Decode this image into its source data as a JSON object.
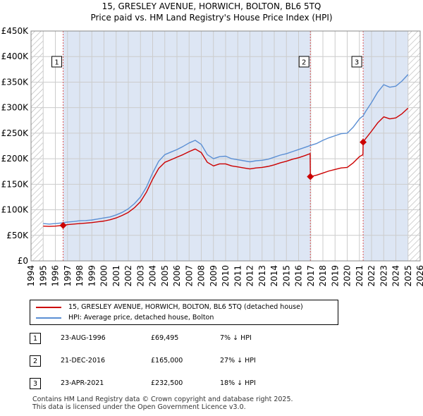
{
  "title_line1": "15, GRESLEY AVENUE, HORWICH, BOLTON, BL6 5TQ",
  "title_line2": "Price paid vs. HM Land Registry's House Price Index (HPI)",
  "legend": {
    "property": "15, GRESLEY AVENUE, HORWICH, BOLTON, BL6 5TQ (detached house)",
    "hpi": "HPI: Average price, detached house, Bolton"
  },
  "colors": {
    "property": "#cc0000",
    "hpi": "#5b8fd4",
    "grid": "#cccccc",
    "plot_bg": "#ffffff",
    "shade": "#dde6f4",
    "hatch": "#b0b0b0",
    "marker_line": "#dd5555"
  },
  "sales": [
    {
      "num": "1",
      "date": "23-AUG-1996",
      "price": "£69,495",
      "hpi": "7% ↓ HPI"
    },
    {
      "num": "2",
      "date": "21-DEC-2016",
      "price": "£165,000",
      "hpi": "27% ↓ HPI"
    },
    {
      "num": "3",
      "date": "23-APR-2021",
      "price": "£232,500",
      "hpi": "18% ↓ HPI"
    }
  ],
  "footer": {
    "line1": "Contains HM Land Registry data © Crown copyright and database right 2025.",
    "line2": "This data is licensed under the Open Government Licence v3.0."
  },
  "chart_data": {
    "type": "line",
    "title": "15, GRESLEY AVENUE, HORWICH, BOLTON, BL6 5TQ — Price paid vs. HM Land Registry's House Price Index (HPI)",
    "xlabel": "",
    "ylabel": "",
    "xlim": [
      1994,
      2026
    ],
    "ylim": [
      0,
      450000
    ],
    "x_ticks": [
      "1994",
      "1995",
      "1996",
      "1997",
      "1998",
      "1999",
      "2000",
      "2001",
      "2002",
      "2003",
      "2004",
      "2005",
      "2006",
      "2007",
      "2008",
      "2009",
      "2010",
      "2011",
      "2012",
      "2013",
      "2014",
      "2015",
      "2016",
      "2017",
      "2018",
      "2019",
      "2020",
      "2021",
      "2022",
      "2023",
      "2024",
      "2025",
      "2026"
    ],
    "y_ticks": [
      {
        "value": 0,
        "label": "£0"
      },
      {
        "value": 50000,
        "label": "£50K"
      },
      {
        "value": 100000,
        "label": "£100K"
      },
      {
        "value": 150000,
        "label": "£150K"
      },
      {
        "value": 200000,
        "label": "£200K"
      },
      {
        "value": 250000,
        "label": "£250K"
      },
      {
        "value": 300000,
        "label": "£300K"
      },
      {
        "value": 350000,
        "label": "£350K"
      },
      {
        "value": 400000,
        "label": "£400K"
      },
      {
        "value": 450000,
        "label": "£450K"
      }
    ],
    "grid": true,
    "shaded_regions": [
      {
        "type": "hatch",
        "from": 1994,
        "to": 1995.0
      },
      {
        "type": "shade",
        "from": 1996.64,
        "to": 2016.97
      },
      {
        "type": "shade",
        "from": 2021.31,
        "to": 2025.0
      },
      {
        "type": "hatch",
        "from": 2025.0,
        "to": 2026
      }
    ],
    "series": [
      {
        "name": "HPI: Average price, detached house, Bolton",
        "x": [
          1995.0,
          1995.5,
          1996.0,
          1996.64,
          1997.0,
          1997.5,
          1998.0,
          1998.5,
          1999.0,
          1999.5,
          2000.0,
          2000.5,
          2001.0,
          2001.5,
          2002.0,
          2002.5,
          2003.0,
          2003.5,
          2004.0,
          2004.5,
          2005.0,
          2005.5,
          2006.0,
          2006.5,
          2007.0,
          2007.5,
          2008.0,
          2008.5,
          2009.0,
          2009.5,
          2010.0,
          2010.5,
          2011.0,
          2011.5,
          2012.0,
          2012.5,
          2013.0,
          2013.5,
          2014.0,
          2014.5,
          2015.0,
          2015.5,
          2016.0,
          2016.5,
          2016.97,
          2017.5,
          2018.0,
          2018.5,
          2019.0,
          2019.5,
          2020.0,
          2020.5,
          2021.0,
          2021.31,
          2021.5,
          2022.0,
          2022.5,
          2023.0,
          2023.5,
          2024.0,
          2024.5,
          2025.0
        ],
        "values": [
          73000,
          72000,
          73000,
          74500,
          76000,
          77000,
          78500,
          79000,
          80000,
          82000,
          84000,
          86000,
          90000,
          95000,
          102000,
          112000,
          125000,
          145000,
          172000,
          195000,
          208000,
          213000,
          218000,
          224000,
          231000,
          236000,
          228000,
          208000,
          200000,
          204000,
          205000,
          200000,
          198000,
          196000,
          194000,
          196000,
          197000,
          199000,
          203000,
          207000,
          210000,
          214000,
          218000,
          222000,
          226000,
          230000,
          236000,
          241000,
          245000,
          249000,
          250000,
          262000,
          278000,
          284000,
          292000,
          310000,
          330000,
          345000,
          340000,
          342000,
          352000,
          365000
        ]
      },
      {
        "name": "15, GRESLEY AVENUE, HORWICH, BOLTON, BL6 5TQ (detached house)",
        "x": [
          1995.0,
          1995.5,
          1996.0,
          1996.64,
          1997.0,
          1997.5,
          1998.0,
          1998.5,
          1999.0,
          1999.5,
          2000.0,
          2000.5,
          2001.0,
          2001.5,
          2002.0,
          2002.5,
          2003.0,
          2003.5,
          2004.0,
          2004.5,
          2005.0,
          2005.5,
          2006.0,
          2006.5,
          2007.0,
          2007.5,
          2008.0,
          2008.5,
          2009.0,
          2009.5,
          2010.0,
          2010.5,
          2011.0,
          2011.5,
          2012.0,
          2012.5,
          2013.0,
          2013.5,
          2014.0,
          2014.5,
          2015.0,
          2015.5,
          2016.0,
          2016.5,
          2016.95,
          2016.97,
          2017.5,
          2018.0,
          2018.5,
          2019.0,
          2019.5,
          2020.0,
          2020.5,
          2021.0,
          2021.29,
          2021.31,
          2021.5,
          2022.0,
          2022.5,
          2023.0,
          2023.5,
          2024.0,
          2024.5,
          2025.0
        ],
        "values": [
          68000,
          67500,
          68000,
          69495,
          71000,
          72000,
          73000,
          74000,
          75000,
          76500,
          78000,
          80500,
          84000,
          89000,
          95000,
          104000,
          116000,
          135000,
          160000,
          181000,
          193000,
          198000,
          203000,
          208000,
          214000,
          219000,
          212000,
          193000,
          186000,
          190000,
          190000,
          186000,
          184000,
          182000,
          180000,
          182000,
          183000,
          185000,
          188000,
          192000,
          195000,
          199000,
          202000,
          206000,
          210000,
          165000,
          168000,
          172000,
          176000,
          179000,
          182000,
          183000,
          192000,
          204000,
          208000,
          232500,
          239000,
          254000,
          270000,
          282000,
          278000,
          280000,
          288000,
          299000
        ]
      }
    ],
    "sale_markers": [
      {
        "label": "1",
        "x": 1996.64,
        "value": 69495
      },
      {
        "label": "2",
        "x": 2016.97,
        "value": 165000
      },
      {
        "label": "3",
        "x": 2021.31,
        "value": 232500
      }
    ]
  }
}
